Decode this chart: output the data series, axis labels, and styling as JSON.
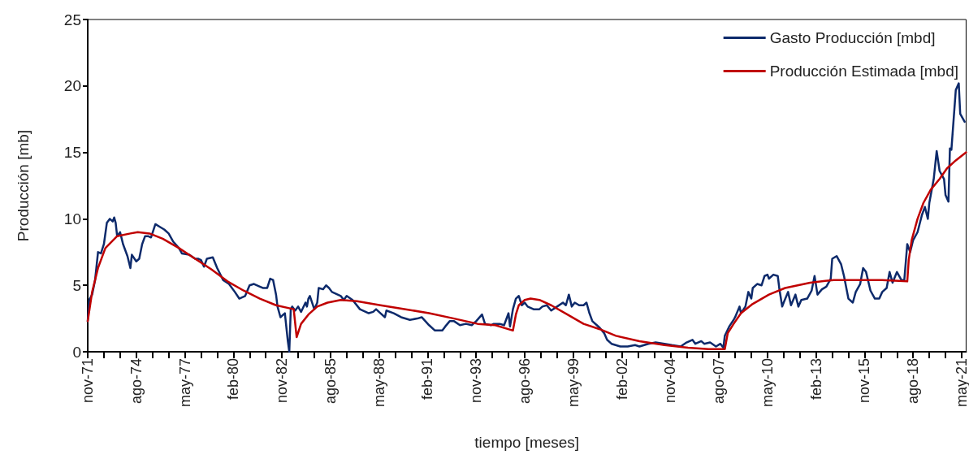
{
  "chart_data": {
    "type": "line",
    "xlabel": "tiempo [meses]",
    "ylabel": "Producción [mb]",
    "xlim": [
      "1971-11",
      "2021-08"
    ],
    "ylim": [
      0,
      25
    ],
    "yticks": [
      0,
      5,
      10,
      15,
      20,
      25
    ],
    "xticks": [
      {
        "value": "1971-11",
        "label": "nov-71"
      },
      {
        "value": "1972-10",
        "label": null
      },
      {
        "value": "1973-09",
        "label": null
      },
      {
        "value": "1974-08",
        "label": "ago-74"
      },
      {
        "value": "1975-07",
        "label": null
      },
      {
        "value": "1976-06",
        "label": null
      },
      {
        "value": "1977-05",
        "label": "may-77"
      },
      {
        "value": "1978-04",
        "label": null
      },
      {
        "value": "1979-03",
        "label": null
      },
      {
        "value": "1980-02",
        "label": "feb-80"
      },
      {
        "value": "1981-01",
        "label": null
      },
      {
        "value": "1981-12",
        "label": null
      },
      {
        "value": "1982-11",
        "label": "nov-82"
      },
      {
        "value": "1983-10",
        "label": null
      },
      {
        "value": "1984-09",
        "label": null
      },
      {
        "value": "1985-08",
        "label": "ago-85"
      },
      {
        "value": "1986-07",
        "label": null
      },
      {
        "value": "1987-06",
        "label": null
      },
      {
        "value": "1988-05",
        "label": "may-88"
      },
      {
        "value": "1989-04",
        "label": null
      },
      {
        "value": "1990-03",
        "label": null
      },
      {
        "value": "1991-02",
        "label": "feb-91"
      },
      {
        "value": "1992-01",
        "label": null
      },
      {
        "value": "1992-12",
        "label": null
      },
      {
        "value": "1993-11",
        "label": "nov-93"
      },
      {
        "value": "1994-10",
        "label": null
      },
      {
        "value": "1995-09",
        "label": null
      },
      {
        "value": "1996-08",
        "label": "ago-96"
      },
      {
        "value": "1997-07",
        "label": null
      },
      {
        "value": "1998-06",
        "label": null
      },
      {
        "value": "1999-05",
        "label": "may-99"
      },
      {
        "value": "2000-04",
        "label": null
      },
      {
        "value": "2001-03",
        "label": null
      },
      {
        "value": "2002-02",
        "label": "feb-02"
      },
      {
        "value": "2003-01",
        "label": null
      },
      {
        "value": "2003-12",
        "label": null
      },
      {
        "value": "2004-11",
        "label": "nov-04"
      },
      {
        "value": "2005-10",
        "label": null
      },
      {
        "value": "2006-09",
        "label": null
      },
      {
        "value": "2007-08",
        "label": "ago-07"
      },
      {
        "value": "2008-07",
        "label": null
      },
      {
        "value": "2009-06",
        "label": null
      },
      {
        "value": "2010-05",
        "label": "may-10"
      },
      {
        "value": "2011-04",
        "label": null
      },
      {
        "value": "2012-03",
        "label": null
      },
      {
        "value": "2013-02",
        "label": "feb-13"
      },
      {
        "value": "2014-01",
        "label": null
      },
      {
        "value": "2014-12",
        "label": null
      },
      {
        "value": "2015-11",
        "label": "nov-15"
      },
      {
        "value": "2016-10",
        "label": null
      },
      {
        "value": "2017-09",
        "label": null
      },
      {
        "value": "2018-08",
        "label": "ago-18"
      },
      {
        "value": "2019-07",
        "label": null
      },
      {
        "value": "2020-06",
        "label": null
      },
      {
        "value": "2021-05",
        "label": "may-21"
      }
    ],
    "grid": false,
    "legend": "top right",
    "marker": "none",
    "line_style": "solid",
    "series": [
      {
        "name": "Gasto Producción [mbd]",
        "color": "#0d2a6b",
        "x": [
          "1971-11",
          "1971-12",
          "1972-02",
          "1972-04",
          "1972-06",
          "1972-08",
          "1972-10",
          "1972-12",
          "1973-02",
          "1973-04",
          "1973-05",
          "1973-06",
          "1973-07",
          "1973-09",
          "1973-11",
          "1974-02",
          "1974-04",
          "1974-05",
          "1974-08",
          "1974-10",
          "1974-12",
          "1975-02",
          "1975-04",
          "1975-06",
          "1975-09",
          "1975-12",
          "1976-03",
          "1976-06",
          "1976-09",
          "1977-01",
          "1977-03",
          "1977-08",
          "1977-12",
          "1978-02",
          "1978-04",
          "1978-06",
          "1978-08",
          "1978-12",
          "1979-03",
          "1979-07",
          "1979-11",
          "1980-03",
          "1980-06",
          "1980-10",
          "1981-01",
          "1981-04",
          "1981-08",
          "1981-10",
          "1982-01",
          "1982-03",
          "1982-05",
          "1982-07",
          "1982-08",
          "1982-10",
          "1982-12",
          "1983-01",
          "1983-03",
          "1983-04",
          "1983-05",
          "1983-06",
          "1983-08",
          "1983-10",
          "1983-12",
          "1984-03",
          "1984-04",
          "1984-05",
          "1984-06",
          "1984-09",
          "1984-11",
          "1984-12",
          "1985-03",
          "1985-05",
          "1985-07",
          "1985-09",
          "1986-03",
          "1986-05",
          "1986-07",
          "1986-11",
          "1987-04",
          "1987-10",
          "1988-01",
          "1988-03",
          "1988-06",
          "1988-09",
          "1988-10",
          "1989-03",
          "1989-08",
          "1990-02",
          "1990-07",
          "1990-10",
          "1991-03",
          "1991-07",
          "1991-12",
          "1992-02",
          "1992-05",
          "1992-08",
          "1992-12",
          "1993-04",
          "1993-08",
          "1993-11",
          "1994-03",
          "1994-05",
          "1994-09",
          "1994-11",
          "1995-03",
          "1995-06",
          "1995-09",
          "1995-10",
          "1995-12",
          "1996-02",
          "1996-04",
          "1996-06",
          "1996-08",
          "1996-10",
          "1997-02",
          "1997-06",
          "1997-08",
          "1997-11",
          "1998-02",
          "1998-06",
          "1998-10",
          "1998-12",
          "1999-02",
          "1999-04",
          "1999-06",
          "1999-09",
          "1999-12",
          "2000-02",
          "2000-04",
          "2000-06",
          "2000-09",
          "2000-11",
          "2001-02",
          "2001-04",
          "2001-07",
          "2002-01",
          "2002-06",
          "2002-11",
          "2003-02",
          "2003-08",
          "2004-01",
          "2004-07",
          "2004-12",
          "2005-06",
          "2005-10",
          "2006-02",
          "2006-04",
          "2006-08",
          "2006-10",
          "2007-02",
          "2007-06",
          "2007-09",
          "2007-11",
          "2007-12",
          "2008-03",
          "2008-06",
          "2008-07",
          "2008-10",
          "2008-11",
          "2009-02",
          "2009-04",
          "2009-06",
          "2009-07",
          "2009-10",
          "2010-01",
          "2010-03",
          "2010-05",
          "2010-06",
          "2010-09",
          "2010-12",
          "2011-01",
          "2011-03",
          "2011-04",
          "2011-07",
          "2011-09",
          "2011-12",
          "2012-02",
          "2012-04",
          "2012-08",
          "2012-11",
          "2013-01",
          "2013-03",
          "2013-06",
          "2013-09",
          "2013-12",
          "2014-01",
          "2014-04",
          "2014-07",
          "2014-09",
          "2014-12",
          "2015-03",
          "2015-05",
          "2015-08",
          "2015-10",
          "2015-12",
          "2016-03",
          "2016-06",
          "2016-09",
          "2016-11",
          "2017-02",
          "2017-04",
          "2017-06",
          "2017-09",
          "2017-12",
          "2018-02",
          "2018-04",
          "2018-06",
          "2018-08",
          "2018-11",
          "2019-02",
          "2019-04",
          "2019-06",
          "2019-07",
          "2019-10",
          "2019-12",
          "2020-02",
          "2020-05",
          "2020-06",
          "2020-08",
          "2020-09",
          "2020-10",
          "2021-01",
          "2021-03",
          "2021-04",
          "2021-07"
        ],
        "values": [
          2.3,
          3.9,
          4.3,
          5.4,
          7.5,
          7.4,
          8.1,
          9.7,
          10.0,
          9.8,
          10.1,
          9.7,
          8.7,
          9.0,
          8.1,
          7.2,
          6.3,
          7.3,
          6.8,
          7.0,
          8.1,
          8.7,
          8.7,
          8.6,
          9.6,
          9.4,
          9.2,
          8.9,
          8.3,
          7.8,
          7.4,
          7.3,
          7.0,
          7.0,
          6.9,
          6.4,
          7.0,
          7.1,
          6.3,
          5.4,
          5.1,
          4.5,
          4.0,
          4.2,
          5.0,
          5.1,
          4.9,
          4.8,
          4.8,
          5.5,
          5.4,
          4.3,
          3.4,
          2.6,
          2.8,
          2.9,
          0.8,
          0,
          3.2,
          3.4,
          3.1,
          3.4,
          3.0,
          3.7,
          3.4,
          4.0,
          4.2,
          3.2,
          3.7,
          4.8,
          4.7,
          5.0,
          4.8,
          4.5,
          4.2,
          3.9,
          4.2,
          3.9,
          3.2,
          2.9,
          3.0,
          3.2,
          2.9,
          2.6,
          3.1,
          2.9,
          2.6,
          2.4,
          2.5,
          2.6,
          2.0,
          1.6,
          1.6,
          1.9,
          2.3,
          2.3,
          2.0,
          2.1,
          2.0,
          2.3,
          2.8,
          2.1,
          2.0,
          2.1,
          2.1,
          2.0,
          2.9,
          1.9,
          3.2,
          4.0,
          4.2,
          3.5,
          3.7,
          3.4,
          3.2,
          3.2,
          3.4,
          3.5,
          3.1,
          3.4,
          3.7,
          3.5,
          4.3,
          3.4,
          3.7,
          3.5,
          3.5,
          3.7,
          2.9,
          2.3,
          2.0,
          1.8,
          1.4,
          0.9,
          0.6,
          0.4,
          0.4,
          0.5,
          0.4,
          0.6,
          0.7,
          0.6,
          0.5,
          0.4,
          0.7,
          0.9,
          0.6,
          0.8,
          0.6,
          0.7,
          0.4,
          0.6,
          0.3,
          1.2,
          1.9,
          2.4,
          2.6,
          3.4,
          2.9,
          3.4,
          4.5,
          4.0,
          4.8,
          5.1,
          5.0,
          5.7,
          5.8,
          5.5,
          5.8,
          5.7,
          4.8,
          3.4,
          3.7,
          4.5,
          3.5,
          4.3,
          3.4,
          3.9,
          4.0,
          4.6,
          5.7,
          4.3,
          4.7,
          4.9,
          5.5,
          7.0,
          7.2,
          6.6,
          5.7,
          4.0,
          3.7,
          4.5,
          5.1,
          6.3,
          6.0,
          4.6,
          4.0,
          4.0,
          4.5,
          4.8,
          6.0,
          5.2,
          6.0,
          5.4,
          5.4,
          8.1,
          7.5,
          8.4,
          9.0,
          10.3,
          10.9,
          10.0,
          11.2,
          13.0,
          15.1,
          13.6,
          13.0,
          11.8,
          11.3,
          15.3,
          15.2,
          19.7,
          20.2,
          17.9,
          17.3
        ]
      },
      {
        "name": "Producción Estimada [mbd]",
        "color": "#c00000",
        "x": [
          "1971-11",
          "1972-02",
          "1972-06",
          "1972-11",
          "1973-07",
          "1974-04",
          "1974-09",
          "1975-05",
          "1976-02",
          "1977-01",
          "1977-12",
          "1978-11",
          "1979-10",
          "1980-09",
          "1981-08",
          "1982-07",
          "1983-07",
          "1983-09",
          "1983-12",
          "1984-05",
          "1984-11",
          "1985-06",
          "1986-03",
          "1987-02",
          "1988-06",
          "1989-11",
          "1991-03",
          "1992-08",
          "1993-12",
          "1994-12",
          "1995-12",
          "1996-02",
          "1996-04",
          "1996-08",
          "1996-12",
          "1997-06",
          "1998-02",
          "1999-01",
          "1999-12",
          "2000-11",
          "2001-10",
          "2003-02",
          "2004-07",
          "2005-11",
          "2007-01",
          "2007-12",
          "2008-02",
          "2008-06",
          "2008-11",
          "2009-07",
          "2010-06",
          "2011-05",
          "2012-10",
          "2014-02",
          "2015-07",
          "2016-11",
          "2018-04",
          "2018-05",
          "2018-07",
          "2018-11",
          "2019-03",
          "2019-08",
          "2020-02",
          "2020-07",
          "2021-01",
          "2021-08"
        ],
        "values": [
          2.3,
          4.5,
          6.3,
          7.8,
          8.7,
          8.9,
          9.0,
          8.9,
          8.5,
          7.8,
          7.0,
          6.2,
          5.3,
          4.6,
          4.0,
          3.5,
          3.2,
          1.1,
          2.1,
          2.8,
          3.4,
          3.7,
          3.9,
          3.8,
          3.5,
          3.2,
          2.9,
          2.5,
          2.1,
          2.0,
          1.6,
          2.8,
          3.5,
          3.9,
          4.0,
          3.9,
          3.5,
          2.8,
          2.1,
          1.7,
          1.2,
          0.8,
          0.5,
          0.3,
          0.2,
          0.2,
          1.4,
          2.1,
          2.9,
          3.6,
          4.3,
          4.8,
          5.2,
          5.4,
          5.4,
          5.4,
          5.3,
          6.9,
          8.4,
          10.0,
          11.2,
          12.2,
          13.0,
          13.8,
          14.4,
          15.0
        ]
      }
    ]
  }
}
